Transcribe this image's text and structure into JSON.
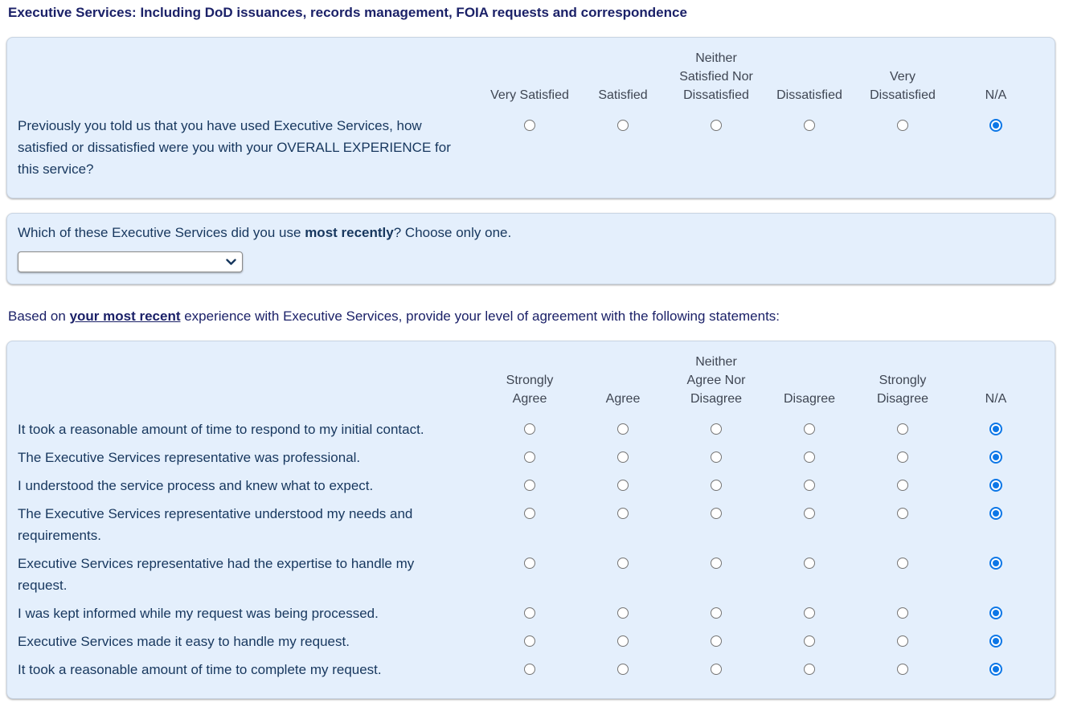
{
  "page": {
    "title": "Executive Services: Including DoD issuances, records management, FOIA requests and correspondence"
  },
  "colors": {
    "accent_blue": "#0d77e7",
    "panel_background": "#e4effc",
    "title_navy": "#1b2168",
    "body_navy": "#17375e",
    "column_header_gray": "#3f4653"
  },
  "satisfaction_matrix": {
    "columns": [
      {
        "label": "Very Satisfied",
        "display": "Very Satisfied"
      },
      {
        "label": "Satisfied",
        "display": "Satisfied"
      },
      {
        "label": "Neither Satisfied Nor Dissatisfied",
        "display": "Neither\nSatisfied Nor\nDissatisfied"
      },
      {
        "label": "Dissatisfied",
        "display": "Dissatisfied"
      },
      {
        "label": "Very Dissatisfied",
        "display": "Very\nDissatisfied"
      },
      {
        "label": "N/A",
        "display": "N/A"
      }
    ],
    "rows": [
      {
        "text": "Previously you told us that you have used Executive Services, how satisfied or dissatisfied were you with your OVERALL EXPERIENCE for this service?",
        "selected": "N/A"
      }
    ]
  },
  "recent_service": {
    "question_prefix": "Which of these Executive Services did you use ",
    "question_bold": "most recently",
    "question_suffix": "? Choose only one.",
    "dropdown_selected_value": ""
  },
  "agreement_intro": {
    "prefix": "Based on ",
    "emphasis": "your most recent",
    "suffix": " experience with Executive Services, provide your level of agreement with the following statements:"
  },
  "agreement_matrix": {
    "columns": [
      {
        "label": "Strongly Agree",
        "display": "Strongly\nAgree"
      },
      {
        "label": "Agree",
        "display": "Agree"
      },
      {
        "label": "Neither Agree Nor Disagree",
        "display": "Neither\nAgree Nor\nDisagree"
      },
      {
        "label": "Disagree",
        "display": "Disagree"
      },
      {
        "label": "Strongly Disagree",
        "display": "Strongly\nDisagree"
      },
      {
        "label": "N/A",
        "display": "N/A"
      }
    ],
    "rows": [
      {
        "text": "It took a reasonable amount of time to respond to my initial contact.",
        "selected": "N/A"
      },
      {
        "text": "The Executive Services representative was professional.",
        "selected": "N/A"
      },
      {
        "text": "I understood the service process and knew what to expect.",
        "selected": "N/A"
      },
      {
        "text": "The Executive Services representative understood my needs and requirements.",
        "selected": "N/A"
      },
      {
        "text": "Executive Services representative had the expertise to handle my request.",
        "selected": "N/A"
      },
      {
        "text": "I was kept informed while my request was being processed.",
        "selected": "N/A"
      },
      {
        "text": "Executive Services made it easy to handle my request.",
        "selected": "N/A"
      },
      {
        "text": "It took a reasonable amount of time to complete my request.",
        "selected": "N/A"
      }
    ]
  }
}
